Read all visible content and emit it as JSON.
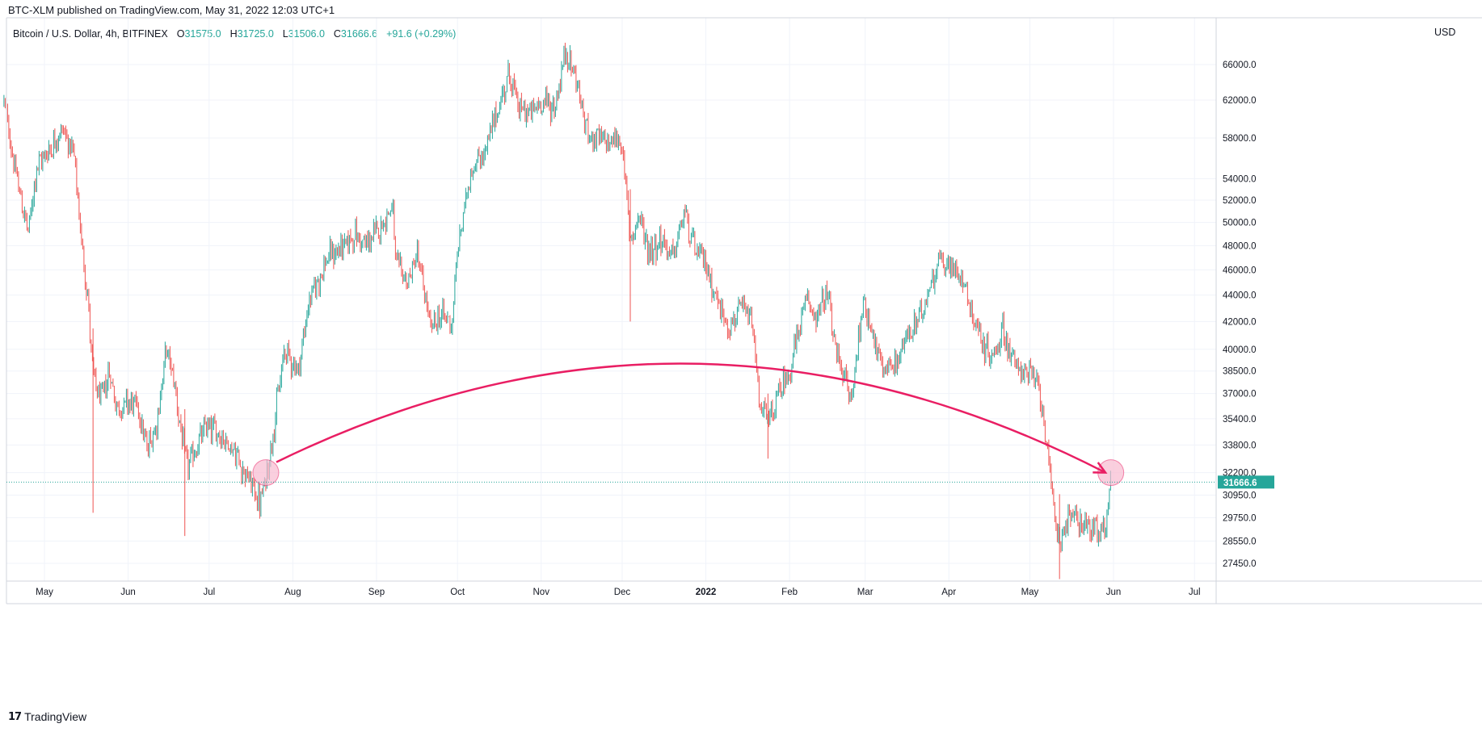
{
  "header": {
    "published": "BTC-XLM published on TradingView.com, May 31, 2022 12:03 UTC+1",
    "symbol": "Bitcoin / U.S. Dollar, 4h, BITFINEX",
    "o_label": "O",
    "o_value": "31575.0",
    "h_label": "H",
    "h_value": "31725.0",
    "l_label": "L",
    "l_value": "31506.0",
    "c_label": "C",
    "c_value": "31666.6",
    "change": "+91.6 (+0.29%)"
  },
  "currency": "USD",
  "footer": {
    "logo_text": "TradingView",
    "logo_mark": "17"
  },
  "colors": {
    "up": "#26a69a",
    "down": "#ef5350",
    "annotation": "#e91e63",
    "circle_fill": "#f8bbd0",
    "price_line": "#26a69a",
    "grid": "#f0f3fa",
    "axis_text": "#131722"
  },
  "chart_data": {
    "type": "candlestick",
    "scale": "log",
    "x_ticks": [
      "May",
      "Jun",
      "Jul",
      "Aug",
      "Sep",
      "Oct",
      "Nov",
      "Dec",
      "2022",
      "Feb",
      "Mar",
      "Apr",
      "May",
      "Jun",
      "Jul"
    ],
    "y_ticks": [
      66000.0,
      62000.0,
      58000.0,
      54000.0,
      52000.0,
      50000.0,
      48000.0,
      46000.0,
      44000.0,
      42000.0,
      40000.0,
      38500.0,
      37000.0,
      35400.0,
      33800.0,
      32200.0,
      30950.0,
      29750.0,
      28550.0,
      27450.0
    ],
    "y_tick_labels": [
      "66000.0",
      "62000.0",
      "58000.0",
      "54000.0",
      "52000.0",
      "50000.0",
      "48000.0",
      "46000.0",
      "44000.0",
      "42000.0",
      "40000.0",
      "38500.0",
      "37000.0",
      "35400.0",
      "33800.0",
      "32200.0",
      "30950.0",
      "29750.0",
      "28550.0",
      "27450.0"
    ],
    "last_price": 31666.6,
    "last_price_label": "31666.6",
    "price_path": [
      [
        "2021-04-16",
        62000
      ],
      [
        "2021-04-20",
        55000
      ],
      [
        "2021-04-25",
        49000
      ],
      [
        "2021-04-28",
        55000
      ],
      [
        "2021-05-03",
        57000
      ],
      [
        "2021-05-08",
        59000
      ],
      [
        "2021-05-12",
        56000
      ],
      [
        "2021-05-14",
        50000
      ],
      [
        "2021-05-17",
        44000
      ],
      [
        "2021-05-19",
        38000
      ],
      [
        "2021-05-22",
        36500
      ],
      [
        "2021-05-25",
        38500
      ],
      [
        "2021-05-28",
        36000
      ],
      [
        "2021-06-01",
        36500
      ],
      [
        "2021-06-05",
        36000
      ],
      [
        "2021-06-08",
        33500
      ],
      [
        "2021-06-12",
        35500
      ],
      [
        "2021-06-15",
        40000
      ],
      [
        "2021-06-18",
        38000
      ],
      [
        "2021-06-21",
        34000
      ],
      [
        "2021-06-23",
        32500
      ],
      [
        "2021-06-26",
        33500
      ],
      [
        "2021-06-30",
        35000
      ],
      [
        "2021-07-05",
        34500
      ],
      [
        "2021-07-10",
        33500
      ],
      [
        "2021-07-15",
        32000
      ],
      [
        "2021-07-20",
        30500
      ],
      [
        "2021-07-22",
        31800
      ],
      [
        "2021-07-25",
        35000
      ],
      [
        "2021-07-29",
        40000
      ],
      [
        "2021-08-03",
        38500
      ],
      [
        "2021-08-07",
        43500
      ],
      [
        "2021-08-14",
        47000
      ],
      [
        "2021-08-20",
        48000
      ],
      [
        "2021-08-24",
        49000
      ],
      [
        "2021-08-28",
        48000
      ],
      [
        "2021-09-02",
        49500
      ],
      [
        "2021-09-07",
        51500
      ],
      [
        "2021-09-08",
        46500
      ],
      [
        "2021-09-13",
        45000
      ],
      [
        "2021-09-16",
        47500
      ],
      [
        "2021-09-21",
        41500
      ],
      [
        "2021-09-25",
        42500
      ],
      [
        "2021-09-29",
        42000
      ],
      [
        "2021-10-01",
        47500
      ],
      [
        "2021-10-06",
        55000
      ],
      [
        "2021-10-11",
        56500
      ],
      [
        "2021-10-16",
        61000
      ],
      [
        "2021-10-20",
        65000
      ],
      [
        "2021-10-24",
        61000
      ],
      [
        "2021-10-28",
        60500
      ],
      [
        "2021-11-02",
        62000
      ],
      [
        "2021-11-06",
        61000
      ],
      [
        "2021-11-10",
        67500
      ],
      [
        "2021-11-14",
        64500
      ],
      [
        "2021-11-17",
        59500
      ],
      [
        "2021-11-20",
        58000
      ],
      [
        "2021-11-25",
        57500
      ],
      [
        "2021-11-29",
        58000
      ],
      [
        "2021-12-01",
        57000
      ],
      [
        "2021-12-04",
        48500
      ],
      [
        "2021-12-07",
        50500
      ],
      [
        "2021-12-11",
        47500
      ],
      [
        "2021-12-15",
        48500
      ],
      [
        "2021-12-20",
        47000
      ],
      [
        "2021-12-24",
        51000
      ],
      [
        "2021-12-28",
        47500
      ],
      [
        "2022-01-01",
        46500
      ],
      [
        "2022-01-06",
        43000
      ],
      [
        "2022-01-10",
        41500
      ],
      [
        "2022-01-14",
        43000
      ],
      [
        "2022-01-18",
        42000
      ],
      [
        "2022-01-21",
        36500
      ],
      [
        "2022-01-24",
        35000
      ],
      [
        "2022-01-28",
        37000
      ],
      [
        "2022-02-01",
        38500
      ],
      [
        "2022-02-07",
        43500
      ],
      [
        "2022-02-11",
        42500
      ],
      [
        "2022-02-15",
        44000
      ],
      [
        "2022-02-18",
        40000
      ],
      [
        "2022-02-24",
        36500
      ],
      [
        "2022-02-28",
        43500
      ],
      [
        "2022-03-03",
        42000
      ],
      [
        "2022-03-07",
        38500
      ],
      [
        "2022-03-12",
        39000
      ],
      [
        "2022-03-17",
        41000
      ],
      [
        "2022-03-22",
        42500
      ],
      [
        "2022-03-28",
        47000
      ],
      [
        "2022-04-01",
        46000
      ],
      [
        "2022-04-05",
        46000
      ],
      [
        "2022-04-10",
        42500
      ],
      [
        "2022-04-14",
        40000
      ],
      [
        "2022-04-18",
        39500
      ],
      [
        "2022-04-21",
        41500
      ],
      [
        "2022-04-25",
        39000
      ],
      [
        "2022-04-29",
        38500
      ],
      [
        "2022-05-03",
        38000
      ],
      [
        "2022-05-06",
        36000
      ],
      [
        "2022-05-09",
        31000
      ],
      [
        "2022-05-12",
        28500
      ],
      [
        "2022-05-16",
        30000
      ],
      [
        "2022-05-20",
        29500
      ],
      [
        "2022-05-24",
        29300
      ],
      [
        "2022-05-27",
        28700
      ],
      [
        "2022-05-29",
        29500
      ],
      [
        "2022-05-31",
        31666.6
      ]
    ],
    "annotations": [
      {
        "type": "circle",
        "date": "2021-07-22",
        "price": 32200
      },
      {
        "type": "circle",
        "date": "2022-05-31",
        "price": 32200
      },
      {
        "type": "arrow",
        "from": [
          "2021-07-25",
          32800
        ],
        "to": [
          "2022-05-29",
          32200
        ],
        "peak_price": 39000
      }
    ]
  }
}
